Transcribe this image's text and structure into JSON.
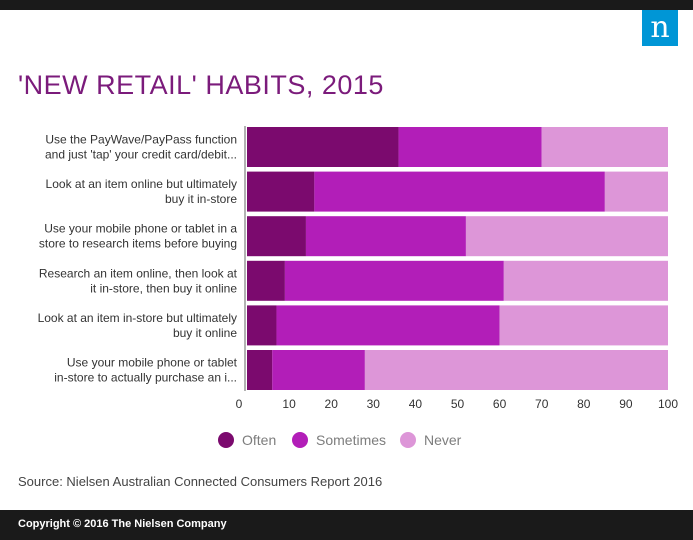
{
  "header": {
    "logo_text": "n"
  },
  "chart_data": {
    "type": "bar",
    "orientation": "horizontal",
    "stacked": true,
    "title": "'NEW RETAIL' HABITS, 2015",
    "categories": [
      [
        "Use the PayWave/PayPass function",
        "and just 'tap' your credit card/debit..."
      ],
      [
        "Look at an item online but ultimately",
        "buy it in-store"
      ],
      [
        "Use your mobile phone or tablet in a",
        "store to research items before buying"
      ],
      [
        "Research an item online, then look at",
        "it in-store, then buy it online"
      ],
      [
        "Look at an item in-store but ultimately",
        "buy it online"
      ],
      [
        "Use your mobile phone or tablet",
        "in-store to actually purchase an i..."
      ]
    ],
    "series": [
      {
        "name": "Often",
        "color": "#7b0a6e",
        "values": [
          36,
          16,
          14,
          9,
          7,
          6
        ]
      },
      {
        "name": "Sometimes",
        "color": "#b21eb8",
        "values": [
          34,
          69,
          38,
          52,
          53,
          22
        ]
      },
      {
        "name": "Never",
        "color": "#dd96d8",
        "values": [
          30,
          15,
          48,
          39,
          40,
          72
        ]
      }
    ],
    "xlim": [
      0,
      100
    ],
    "xticks": [
      "0",
      "10",
      "20",
      "30",
      "40",
      "50",
      "60",
      "70",
      "80",
      "90",
      "100"
    ],
    "legend_position": "bottom",
    "grid": false
  },
  "source": "Source: Nielsen Australian Connected Consumers Report 2016",
  "footer": {
    "copyright": "Copyright © 2016 The Nielsen Company"
  }
}
